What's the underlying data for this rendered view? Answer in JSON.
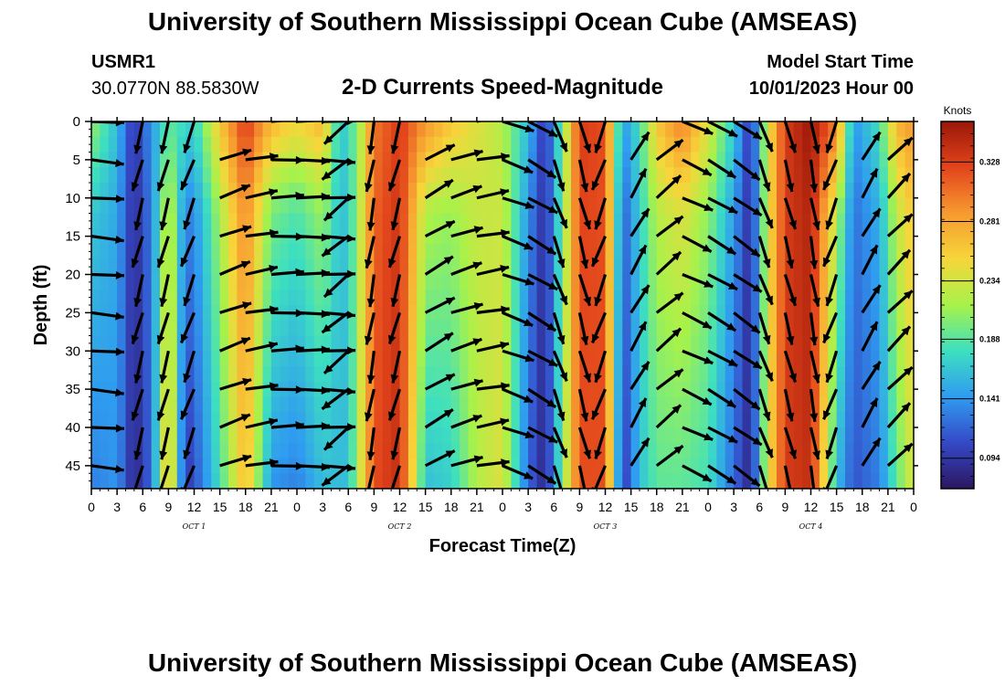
{
  "header": {
    "title": "University of Southern Mississippi Ocean Cube (AMSEAS)",
    "station_name": "USMR1",
    "station_coords": "30.0770N  88.5830W",
    "subtitle": "2-D Currents Speed-Magnitude",
    "model_start_label": "Model Start Time",
    "model_start_value": "10/01/2023 Hour 00"
  },
  "footer": {
    "title": "University of Southern Mississippi Ocean Cube (AMSEAS)"
  },
  "colorbar": {
    "unit_label": "Knots",
    "ticks": [
      "0.094",
      "0.141",
      "0.188",
      "0.234",
      "0.281",
      "0.328"
    ],
    "colors": [
      "#2b1760",
      "#3549c7",
      "#2f9cf0",
      "#3ddfc0",
      "#a7f24a",
      "#f6d63a",
      "#f79a30",
      "#e2441b",
      "#9a1708"
    ]
  },
  "chart_data": {
    "type": "heatmap",
    "title": "2-D Currents Speed-Magnitude",
    "xlabel": "Forecast Time(Z)",
    "ylabel": "Depth (ft)",
    "x_ticks": [
      "0",
      "3",
      "6",
      "9",
      "12",
      "15",
      "18",
      "21",
      "0",
      "3",
      "6",
      "9",
      "12",
      "15",
      "18",
      "21",
      "0",
      "3",
      "6",
      "9",
      "12",
      "15",
      "18",
      "21",
      "0",
      "3",
      "6",
      "9",
      "12",
      "15",
      "18",
      "21",
      "0"
    ],
    "x_range_hours": [
      0,
      96
    ],
    "y_ticks": [
      "0",
      "5",
      "10",
      "15",
      "20",
      "25",
      "30",
      "35",
      "40",
      "45"
    ],
    "y_range_ft": [
      0,
      48
    ],
    "date_labels": [
      "OCT 1",
      "OCT 2",
      "OCT 3",
      "OCT 4"
    ],
    "speed_range_knots": [
      0.07,
      0.36
    ],
    "arrow_times_hours": [
      0,
      6,
      9,
      12,
      15,
      18,
      21,
      24,
      27,
      30,
      33,
      36,
      39,
      42,
      45,
      48,
      51,
      54,
      57,
      60,
      63,
      66,
      69,
      72,
      75,
      78,
      81,
      84,
      87,
      90,
      93,
      96
    ],
    "arrow_depths_ft": [
      0,
      5,
      10,
      15,
      20,
      25,
      30,
      35,
      40,
      45
    ],
    "surface_speed_profile": [
      {
        "hour": 0,
        "speed": 0.21
      },
      {
        "hour": 3,
        "speed": 0.16
      },
      {
        "hour": 5,
        "speed": 0.09
      },
      {
        "hour": 7,
        "speed": 0.14
      },
      {
        "hour": 9,
        "speed": 0.19
      },
      {
        "hour": 12,
        "speed": 0.17
      },
      {
        "hour": 15,
        "speed": 0.26
      },
      {
        "hour": 18,
        "speed": 0.33
      },
      {
        "hour": 21,
        "speed": 0.27
      },
      {
        "hour": 24,
        "speed": 0.25
      },
      {
        "hour": 27,
        "speed": 0.27
      },
      {
        "hour": 29,
        "speed": 0.16
      },
      {
        "hour": 31,
        "speed": 0.2
      },
      {
        "hour": 33,
        "speed": 0.3
      },
      {
        "hour": 36,
        "speed": 0.33
      },
      {
        "hour": 39,
        "speed": 0.29
      },
      {
        "hour": 42,
        "speed": 0.26
      },
      {
        "hour": 45,
        "speed": 0.24
      },
      {
        "hour": 48,
        "speed": 0.22
      },
      {
        "hour": 51,
        "speed": 0.16
      },
      {
        "hour": 53,
        "speed": 0.09
      },
      {
        "hour": 55,
        "speed": 0.2
      },
      {
        "hour": 57,
        "speed": 0.33
      },
      {
        "hour": 60,
        "speed": 0.32
      },
      {
        "hour": 62,
        "speed": 0.14
      },
      {
        "hour": 64,
        "speed": 0.18
      },
      {
        "hour": 66,
        "speed": 0.26
      },
      {
        "hour": 69,
        "speed": 0.3
      },
      {
        "hour": 72,
        "speed": 0.24
      },
      {
        "hour": 75,
        "speed": 0.17
      },
      {
        "hour": 77,
        "speed": 0.09
      },
      {
        "hour": 79,
        "speed": 0.24
      },
      {
        "hour": 81,
        "speed": 0.33
      },
      {
        "hour": 84,
        "speed": 0.36
      },
      {
        "hour": 87,
        "speed": 0.3
      },
      {
        "hour": 89,
        "speed": 0.14
      },
      {
        "hour": 92,
        "speed": 0.18
      },
      {
        "hour": 94,
        "speed": 0.27
      },
      {
        "hour": 96,
        "speed": 0.29
      }
    ],
    "bottom_speed_profile": [
      {
        "hour": 0,
        "speed": 0.13
      },
      {
        "hour": 3,
        "speed": 0.14
      },
      {
        "hour": 5,
        "speed": 0.08
      },
      {
        "hour": 7,
        "speed": 0.12
      },
      {
        "hour": 9,
        "speed": 0.28
      },
      {
        "hour": 11,
        "speed": 0.09
      },
      {
        "hour": 13,
        "speed": 0.13
      },
      {
        "hour": 15,
        "speed": 0.18
      },
      {
        "hour": 18,
        "speed": 0.27
      },
      {
        "hour": 21,
        "speed": 0.14
      },
      {
        "hour": 24,
        "speed": 0.13
      },
      {
        "hour": 27,
        "speed": 0.16
      },
      {
        "hour": 30,
        "speed": 0.16
      },
      {
        "hour": 33,
        "speed": 0.32
      },
      {
        "hour": 36,
        "speed": 0.34
      },
      {
        "hour": 39,
        "speed": 0.16
      },
      {
        "hour": 42,
        "speed": 0.17
      },
      {
        "hour": 45,
        "speed": 0.22
      },
      {
        "hour": 48,
        "speed": 0.24
      },
      {
        "hour": 51,
        "speed": 0.12
      },
      {
        "hour": 53,
        "speed": 0.08
      },
      {
        "hour": 55,
        "speed": 0.2
      },
      {
        "hour": 57,
        "speed": 0.32
      },
      {
        "hour": 60,
        "speed": 0.32
      },
      {
        "hour": 62,
        "speed": 0.09
      },
      {
        "hour": 64,
        "speed": 0.16
      },
      {
        "hour": 66,
        "speed": 0.19
      },
      {
        "hour": 69,
        "speed": 0.19
      },
      {
        "hour": 72,
        "speed": 0.18
      },
      {
        "hour": 75,
        "speed": 0.12
      },
      {
        "hour": 77,
        "speed": 0.08
      },
      {
        "hour": 79,
        "speed": 0.24
      },
      {
        "hour": 81,
        "speed": 0.33
      },
      {
        "hour": 84,
        "speed": 0.34
      },
      {
        "hour": 87,
        "speed": 0.16
      },
      {
        "hour": 89,
        "speed": 0.11
      },
      {
        "hour": 92,
        "speed": 0.13
      },
      {
        "hour": 94,
        "speed": 0.19
      },
      {
        "hour": 96,
        "speed": 0.24
      }
    ],
    "direction_profile_deg": [
      {
        "hour": 0,
        "dir": 95
      },
      {
        "hour": 6,
        "dir": 195
      },
      {
        "hour": 9,
        "dir": 195
      },
      {
        "hour": 12,
        "dir": 200
      },
      {
        "hour": 15,
        "dir": 70
      },
      {
        "hour": 18,
        "dir": 80
      },
      {
        "hour": 21,
        "dir": 88
      },
      {
        "hour": 24,
        "dir": 90
      },
      {
        "hour": 27,
        "dir": 92
      },
      {
        "hour": 30,
        "dir": 230
      },
      {
        "hour": 33,
        "dir": 190
      },
      {
        "hour": 36,
        "dir": 195
      },
      {
        "hour": 39,
        "dir": 60
      },
      {
        "hour": 42,
        "dir": 72
      },
      {
        "hour": 45,
        "dir": 80
      },
      {
        "hour": 48,
        "dir": 110
      },
      {
        "hour": 51,
        "dir": 120
      },
      {
        "hour": 54,
        "dir": 160
      },
      {
        "hour": 57,
        "dir": 165
      },
      {
        "hour": 60,
        "dir": 200
      },
      {
        "hour": 63,
        "dir": 30
      },
      {
        "hour": 66,
        "dir": 50
      },
      {
        "hour": 69,
        "dir": 115
      },
      {
        "hour": 72,
        "dir": 120
      },
      {
        "hour": 75,
        "dir": 125
      },
      {
        "hour": 78,
        "dir": 160
      },
      {
        "hour": 81,
        "dir": 165
      },
      {
        "hour": 84,
        "dir": 170
      },
      {
        "hour": 87,
        "dir": 200
      },
      {
        "hour": 90,
        "dir": 30
      },
      {
        "hour": 93,
        "dir": 45
      },
      {
        "hour": 96,
        "dir": 95
      }
    ]
  }
}
